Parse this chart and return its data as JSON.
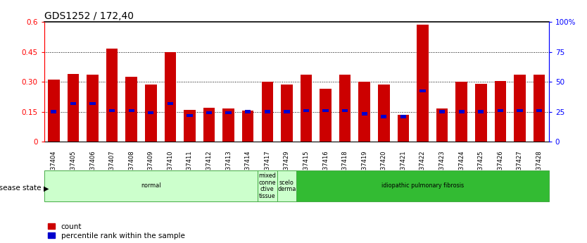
{
  "title": "GDS1252 / 172,40",
  "samples": [
    "GSM37404",
    "GSM37405",
    "GSM37406",
    "GSM37407",
    "GSM37408",
    "GSM37409",
    "GSM37410",
    "GSM37411",
    "GSM37412",
    "GSM37413",
    "GSM37414",
    "GSM37417",
    "GSM37429",
    "GSM37415",
    "GSM37416",
    "GSM37418",
    "GSM37419",
    "GSM37420",
    "GSM37421",
    "GSM37422",
    "GSM37423",
    "GSM37424",
    "GSM37425",
    "GSM37426",
    "GSM37427",
    "GSM37428"
  ],
  "count_values": [
    0.31,
    0.34,
    0.335,
    0.465,
    0.325,
    0.285,
    0.45,
    0.16,
    0.17,
    0.165,
    0.155,
    0.3,
    0.285,
    0.335,
    0.265,
    0.335,
    0.3,
    0.285,
    0.135,
    0.585,
    0.165,
    0.3,
    0.29,
    0.305,
    0.335,
    0.335
  ],
  "percentile_values": [
    0.15,
    0.19,
    0.19,
    0.155,
    0.155,
    0.145,
    0.19,
    0.13,
    0.145,
    0.145,
    0.15,
    0.15,
    0.15,
    0.155,
    0.155,
    0.155,
    0.14,
    0.125,
    0.125,
    0.255,
    0.15,
    0.15,
    0.15,
    0.155,
    0.155,
    0.155
  ],
  "ylim": [
    0,
    0.6
  ],
  "yticks_left": [
    0,
    0.15,
    0.3,
    0.45,
    0.6
  ],
  "yticks_right": [
    0,
    25,
    50,
    75,
    100
  ],
  "ytick_labels_left": [
    "0",
    "0.15",
    "0.30",
    "0.45",
    "0.6"
  ],
  "ytick_labels_right": [
    "0",
    "25",
    "50",
    "75",
    "100%"
  ],
  "hlines": [
    0.15,
    0.3,
    0.45
  ],
  "bar_color": "#cc0000",
  "percentile_color": "#0000cc",
  "bar_width": 0.6,
  "disease_groups": [
    {
      "label": "normal",
      "start": 0,
      "end": 11,
      "color": "#ccffcc",
      "edgecolor": "#44aa44"
    },
    {
      "label": "mixed\nconne\nctive\ntissue",
      "start": 11,
      "end": 12,
      "color": "#ccffcc",
      "edgecolor": "#44aa44"
    },
    {
      "label": "scelo\nderma",
      "start": 12,
      "end": 13,
      "color": "#ccffcc",
      "edgecolor": "#44aa44"
    },
    {
      "label": "idiopathic pulmonary fibrosis",
      "start": 13,
      "end": 26,
      "color": "#33bb33",
      "edgecolor": "#44aa44"
    }
  ],
  "legend_count_label": "count",
  "legend_percentile_label": "percentile rank within the sample",
  "disease_state_label": "disease state",
  "title_fontsize": 10,
  "figure_bg": "#ffffff",
  "plot_bg": "#ffffff",
  "xtick_bg": "#cccccc"
}
